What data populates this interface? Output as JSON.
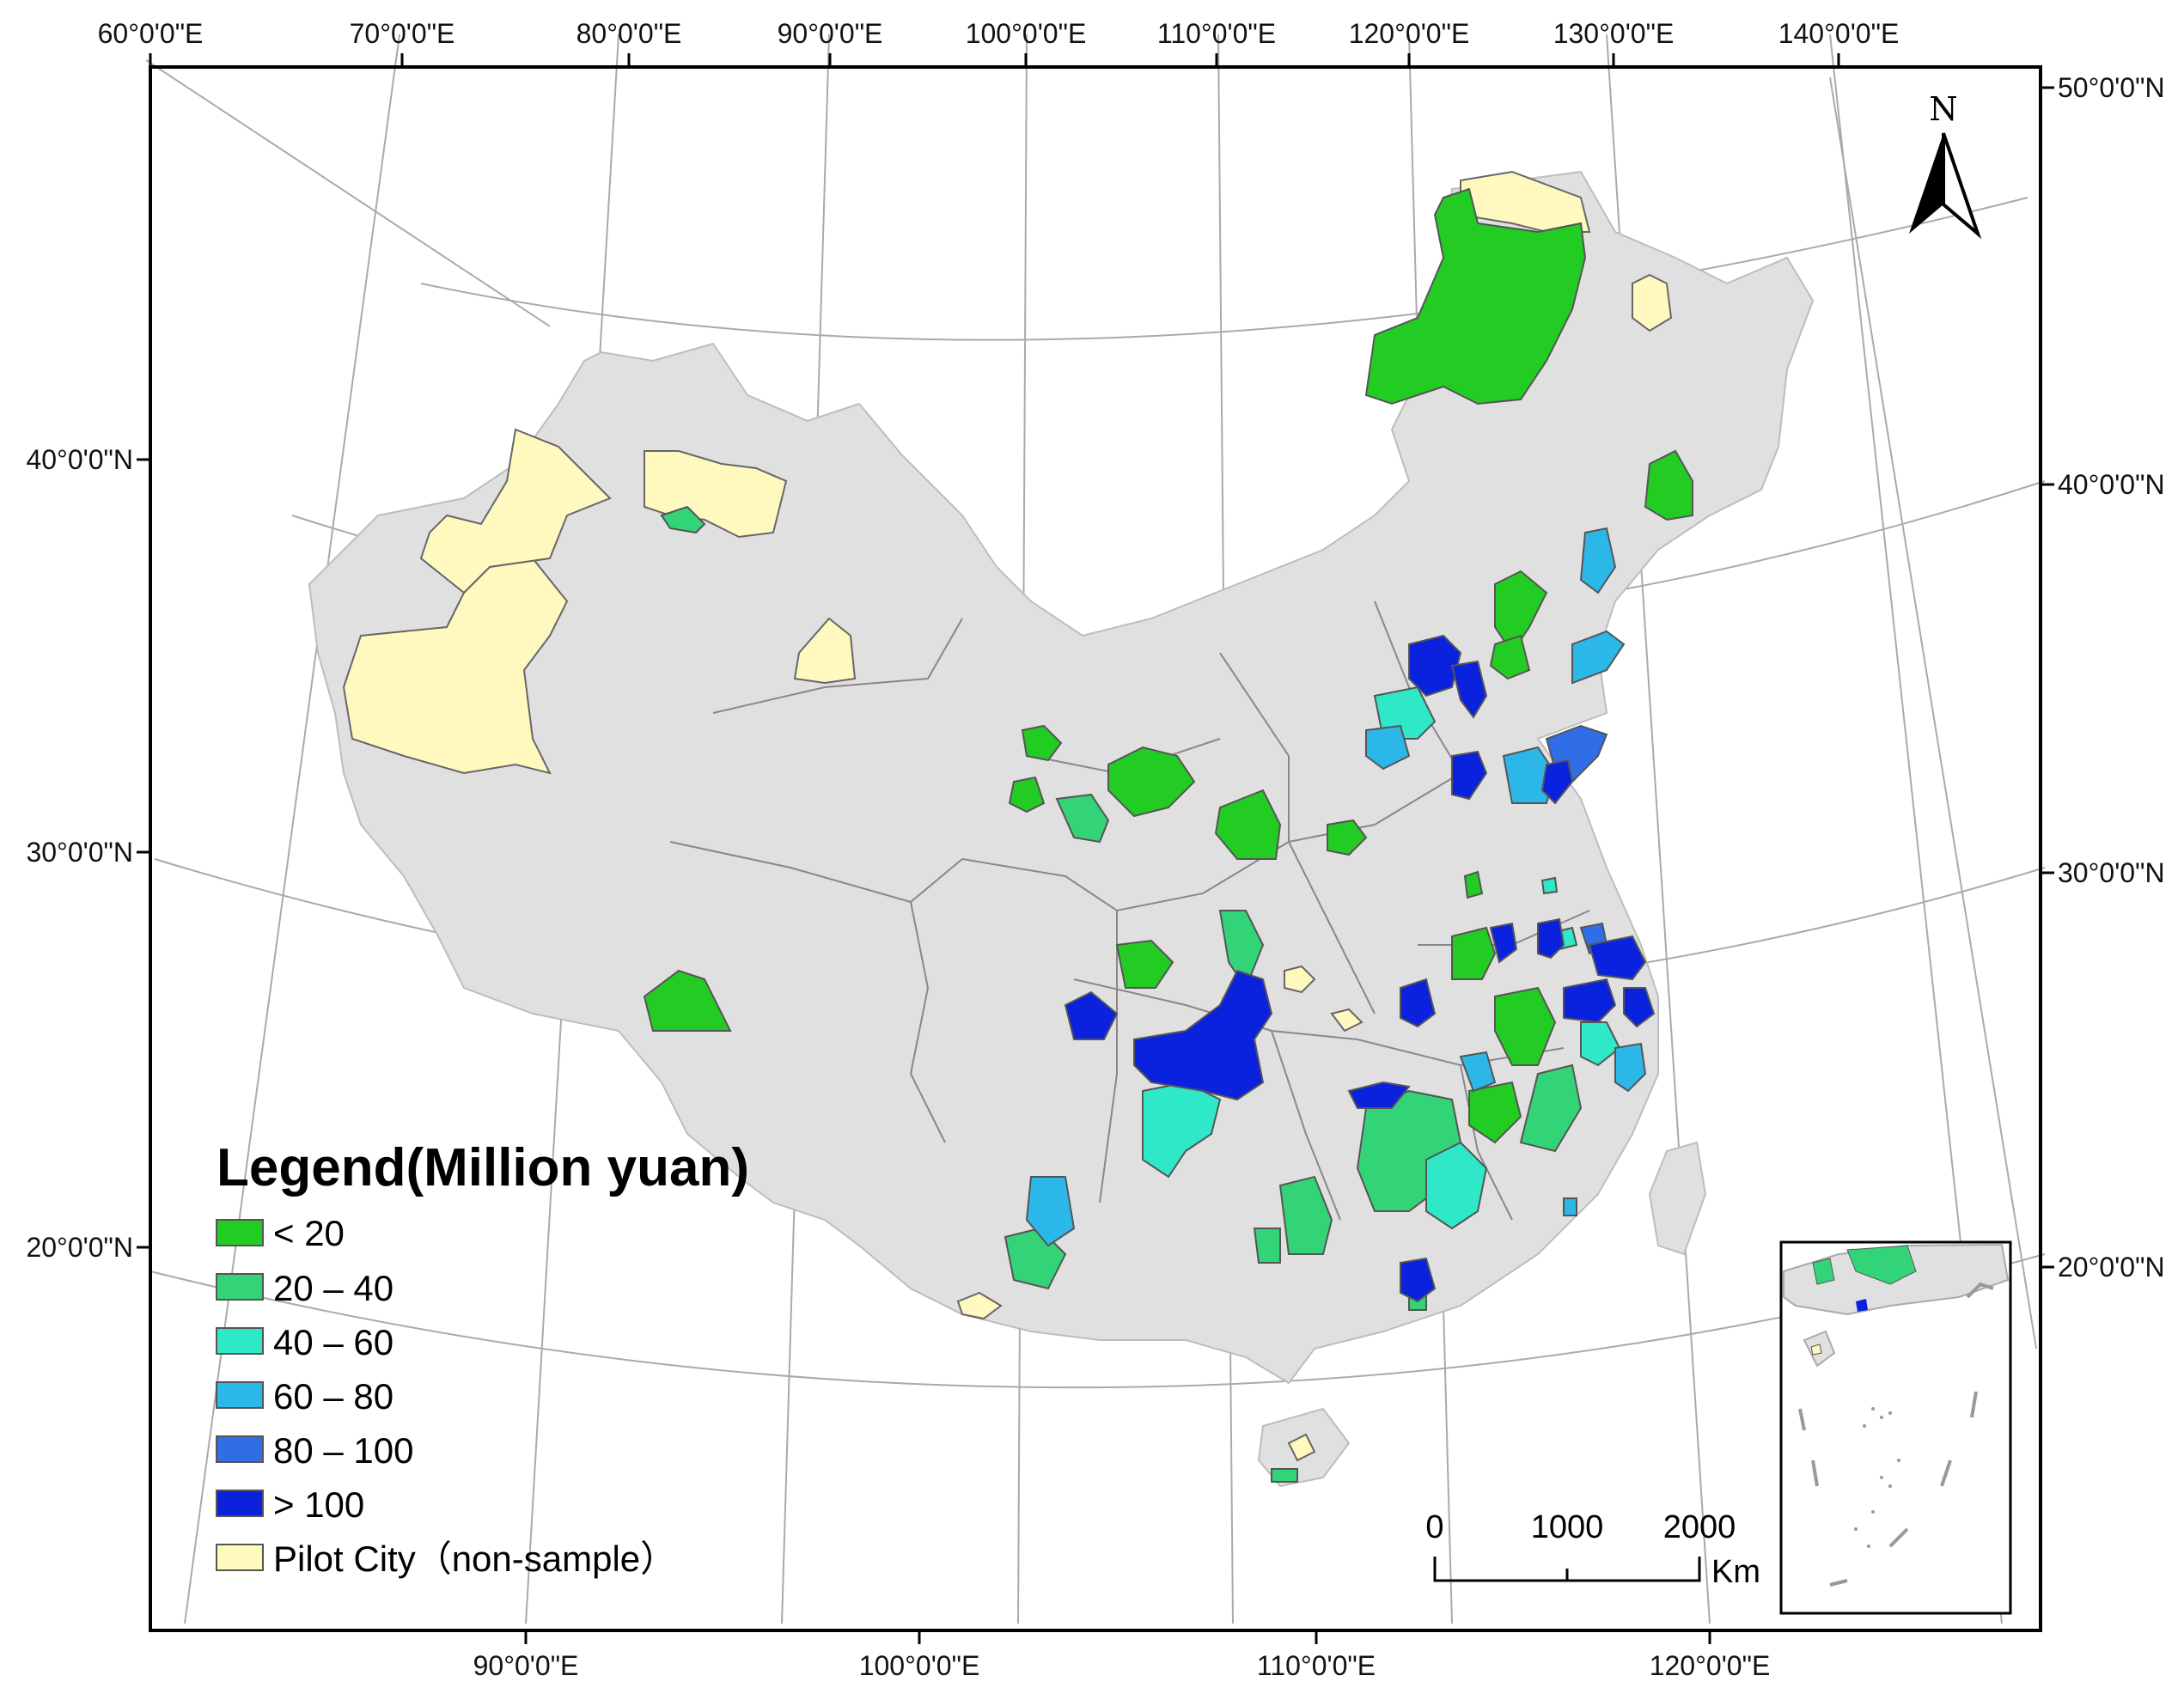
{
  "map": {
    "top_longitudes": [
      "60°0'0\"E",
      "70°0'0\"E",
      "80°0'0\"E",
      "90°0'0\"E",
      "100°0'0\"E",
      "110°0'0\"E",
      "120°0'0\"E",
      "130°0'0\"E",
      "140°0'0\"E"
    ],
    "bottom_longitudes": [
      "90°0'0\"E",
      "100°0'0\"E",
      "110°0'0\"E",
      "120°0'0\"E"
    ],
    "left_latitudes": [
      "40°0'0\"N",
      "30°0'0\"N",
      "20°0'0\"N"
    ],
    "right_latitudes": [
      "50°0'0\"N",
      "40°0'0\"N",
      "30°0'0\"N",
      "20°0'0\"N"
    ],
    "north_arrow": {
      "label": "N",
      "icon": "north-arrow-icon"
    },
    "scale_bar": {
      "labels": [
        "0",
        "1000",
        "2000"
      ],
      "unit": "Km"
    }
  },
  "legend": {
    "title": "Legend(Million yuan)",
    "items": [
      {
        "label": "< 20",
        "color": "#22cc22"
      },
      {
        "label": "20 – 40",
        "color": "#33d477"
      },
      {
        "label": "40 – 60",
        "color": "#2ee8c8"
      },
      {
        "label": "60 – 80",
        "color": "#2bb8e8"
      },
      {
        "label": "80 – 100",
        "color": "#2f6ee6"
      },
      {
        "label": "> 100",
        "color": "#0a22dd"
      },
      {
        "label": "Pilot City（non-sample）",
        "color": "#fff9c0"
      }
    ]
  },
  "colors": {
    "land": "#e0e0e0",
    "border": "#777777",
    "graticule": "#aaaaaa",
    "frame": "#000000"
  }
}
